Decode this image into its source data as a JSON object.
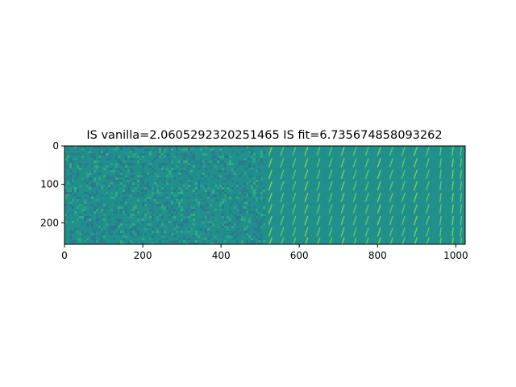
{
  "chart_data": {
    "type": "heatmap",
    "title": "IS vanilla=2.0605292320251465 IS fit=6.735674858093262",
    "xlabel": "",
    "ylabel": "",
    "xlim": [
      0,
      1024
    ],
    "ylim": [
      256,
      0
    ],
    "y_axis_inverted": true,
    "x_ticks": [
      0,
      200,
      400,
      600,
      800,
      1000
    ],
    "y_ticks": [
      0,
      100,
      200
    ],
    "grid": false,
    "colormap": "viridis",
    "regions": [
      {
        "name": "left half",
        "x_range": [
          0,
          512
        ],
        "content": "random noise"
      },
      {
        "name": "right half",
        "x_range": [
          512,
          1024
        ],
        "content": "grid of diagonal strokes"
      }
    ],
    "stroke_columns_x": [
      526,
      556,
      587,
      618,
      649,
      680,
      711,
      742,
      773,
      804,
      835,
      866,
      897,
      928,
      961,
      992,
      1013
    ],
    "stroke_rows_y": [
      14,
      44,
      74,
      104,
      134,
      164,
      194,
      224,
      250
    ],
    "colors": {
      "background_mean": "#21908d",
      "noise_low": "#2c718e",
      "noise_high": "#35b779",
      "stroke": "#5ec962",
      "stroke_bright": "#7ad151"
    }
  }
}
